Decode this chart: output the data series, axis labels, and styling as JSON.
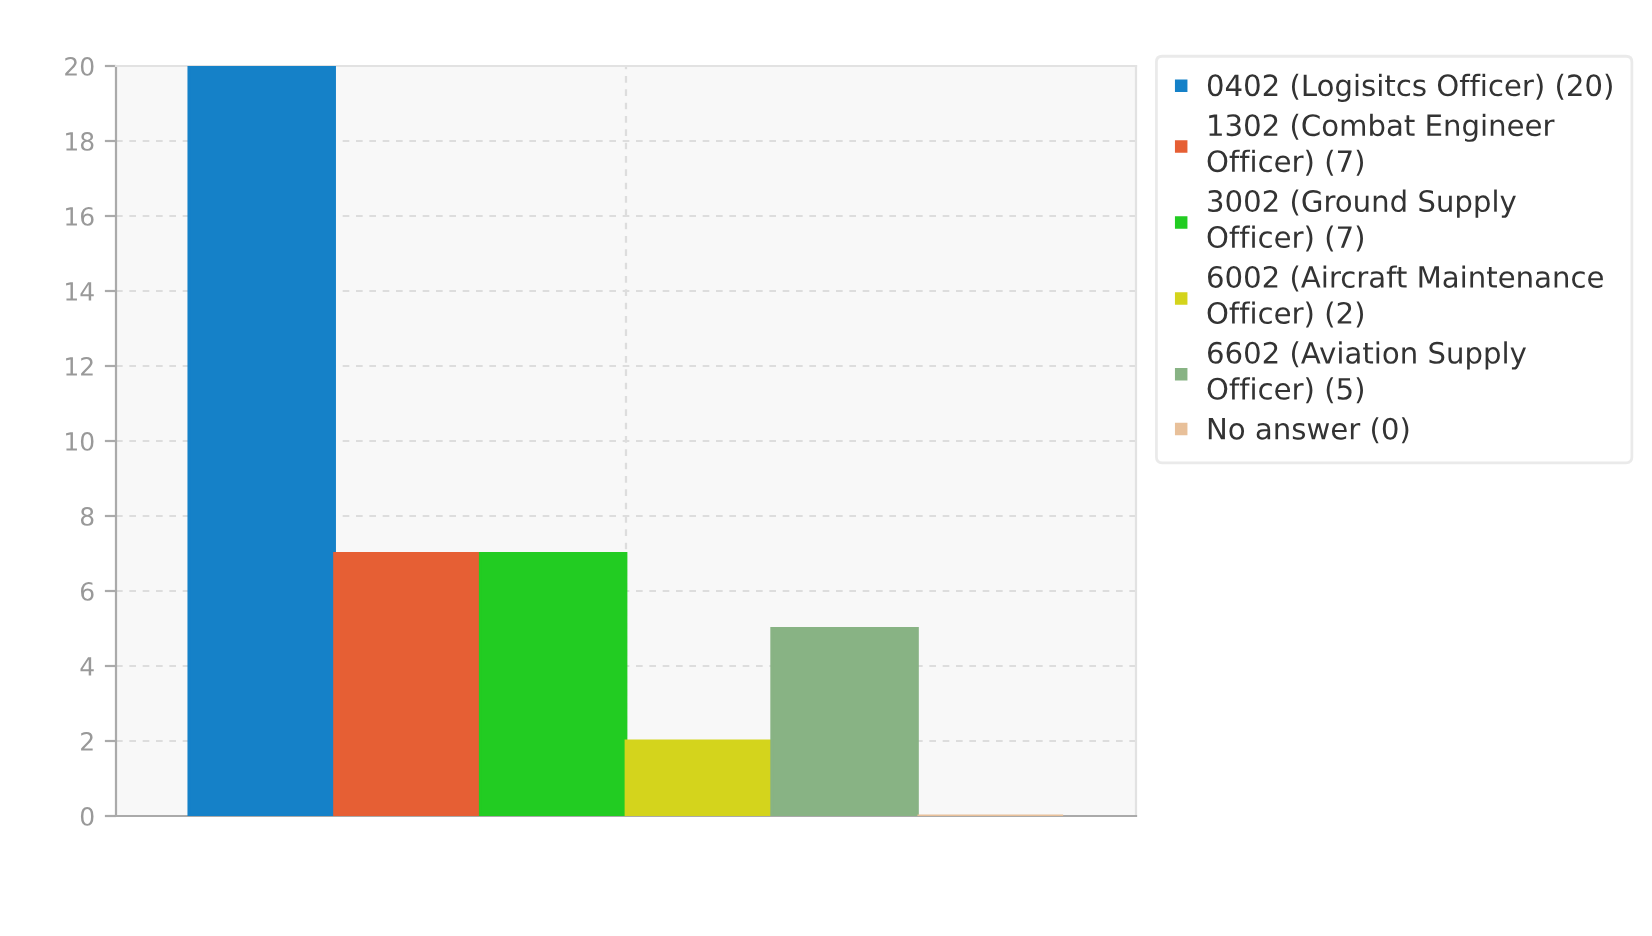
{
  "chart_data": {
    "type": "bar",
    "categories": [
      null
    ],
    "series": [
      {
        "name": "0402 (Logisitcs Officer) (20)",
        "color": "#1581c8",
        "values": [
          20
        ]
      },
      {
        "name": "1302 (Combat Engineer Officer) (7)",
        "color": "#e65f34",
        "values": [
          7
        ]
      },
      {
        "name": "3002 (Ground Supply Officer) (7)",
        "color": "#22cc22",
        "values": [
          7
        ]
      },
      {
        "name": "6002 (Aircraft Maintenance Officer) (2)",
        "color": "#d4d41c",
        "values": [
          2
        ]
      },
      {
        "name": "6602 (Aviation Supply Officer) (5)",
        "color": "#88b384",
        "values": [
          5
        ]
      },
      {
        "name": "No answer (0)",
        "color": "#e8c09a",
        "values": [
          0
        ]
      }
    ],
    "ylim": [
      0,
      20
    ],
    "yticks": [
      0,
      2,
      4,
      6,
      8,
      10,
      12,
      14,
      16,
      18,
      20
    ],
    "grid": true,
    "legend": "top right"
  }
}
